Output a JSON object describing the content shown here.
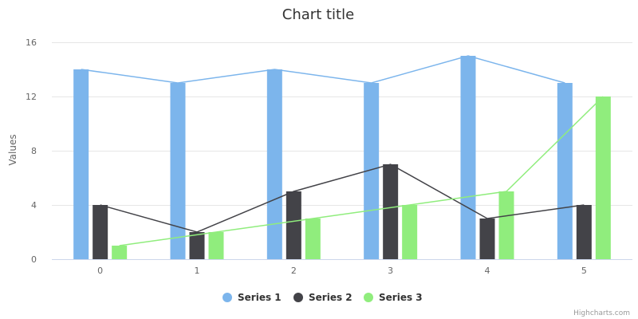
{
  "chart_data": {
    "type": "bar",
    "title": "Chart title",
    "xlabel": "",
    "ylabel": "Values",
    "categories": [
      "0",
      "1",
      "2",
      "3",
      "4",
      "5"
    ],
    "ylim": [
      0,
      16
    ],
    "yticks": [
      0,
      4,
      8,
      12,
      16
    ],
    "grid": true,
    "legend_position": "bottom-center",
    "overlay": "line connecting each series' bar tops",
    "series": [
      {
        "name": "Series 1",
        "color": "#7cb5ec",
        "values": [
          14,
          13,
          14,
          13,
          15,
          13
        ]
      },
      {
        "name": "Series 2",
        "color": "#434348",
        "values": [
          4,
          2,
          5,
          7,
          3,
          4
        ]
      },
      {
        "name": "Series 3",
        "color": "#90ed7d",
        "values": [
          1,
          2,
          3,
          4,
          5,
          12
        ]
      }
    ]
  },
  "credit": "Highcharts.com"
}
